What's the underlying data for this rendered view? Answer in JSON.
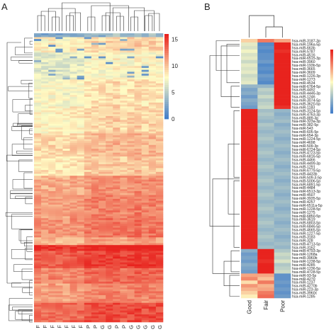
{
  "chart_data": [
    {
      "panel": "A",
      "type": "heatmap",
      "column_labels": [
        "F",
        "F",
        "F",
        "F",
        "F",
        "F",
        "F",
        "P",
        "P",
        "G",
        "G",
        "P",
        "P",
        "G",
        "G",
        "G",
        "G",
        "G"
      ],
      "n_rows": 150,
      "row_band_means": [
        {
          "rows": [
            0,
            2
          ],
          "value": 3.5
        },
        {
          "rows": [
            2,
            10
          ],
          "value": 9.0
        },
        {
          "rows": [
            10,
            24
          ],
          "value": 7.5
        },
        {
          "rows": [
            24,
            38
          ],
          "value": 8.5
        },
        {
          "rows": [
            38,
            52
          ],
          "value": 9.0
        },
        {
          "rows": [
            52,
            64
          ],
          "value": 10.0
        },
        {
          "rows": [
            64,
            74
          ],
          "value": 9.5
        },
        {
          "rows": [
            74,
            84
          ],
          "value": 11.5
        },
        {
          "rows": [
            84,
            96
          ],
          "value": 12.0
        },
        {
          "rows": [
            96,
            106
          ],
          "value": 12.5
        },
        {
          "rows": [
            106,
            110
          ],
          "value": 11.0
        },
        {
          "rows": [
            110,
            113
          ],
          "value": 16.0
        },
        {
          "rows": [
            113,
            122
          ],
          "value": 14.5
        },
        {
          "rows": [
            122,
            130
          ],
          "value": 13.0
        },
        {
          "rows": [
            130,
            140
          ],
          "value": 12.0
        },
        {
          "rows": [
            140,
            150
          ],
          "value": 14.0
        }
      ],
      "colorbar": {
        "ticks": [
          0,
          5,
          10,
          15
        ],
        "min": 0,
        "max": 16
      }
    },
    {
      "panel": "B",
      "type": "heatmap",
      "column_labels": [
        "Good",
        "Fair",
        "Poor"
      ],
      "row_labels": [
        "hsa-miR-3187-3p",
        "hsa-miR-196a-5p",
        "hsa-miR-663b",
        "hsa-miR-5787",
        "hsa-miR-4516",
        "hsa-miR-6515-3p",
        "hsa-miR-3960",
        "hsa-miR-193b-5p",
        "hsa-miR-3665",
        "hsa-miR-3609",
        "hsa-miR-1226-3p",
        "hsa-miR-1273",
        "hsa-miR-4534",
        "hsa-miR-6764-5p",
        "hsa-miR-4492",
        "hsa-miR-4446-3p",
        "hsa-miR-1246",
        "hsa-miR-3074-5p",
        "hsa-miR-3620-5p",
        "hsa-miR-1183",
        "hsa-miR-3124-5p",
        "hsa-miR-4763-3p",
        "hsa-miR-889-3p",
        "hsa-miR-323a-3p",
        "hsa-miR-382-5p",
        "hsa-miR-543",
        "hsa-miR-605-5p",
        "hsa-miR-654-3p",
        "hsa-miR-1224-5p",
        "hsa-miR-4698",
        "hsa-miR-509-3p",
        "hsa-miR-6724-5p",
        "hsa-miR-4723-5p",
        "hsa-miR-6816-5p",
        "hsa-miR-4466",
        "hsa-miR-4499-3p",
        "hsa-miR-1291",
        "hsa-miR-6779-5p",
        "hsa-miR-4433b",
        "hsa-miR-509-3-5p",
        "hsa-miR-5006-5p",
        "hsa-miR-6891-5p",
        "hsa-miR-4484",
        "hsa-miR-6513-3p",
        "hsa-miR-4507",
        "hsa-miR-3935-5p",
        "hsa-miR-4257",
        "hsa-miR-6511a-5p",
        "hsa-miR-1228-5p",
        "hsa-miR-1275",
        "hsa-miR-6850-5p",
        "hsa-miR-3619",
        "hsa-miR-6803-5p",
        "hsa-miR-6846-5p",
        "hsa-miR-4665-5p",
        "hsa-miR-1227-5p",
        "hsa-miR-3183",
        "hsa-miR-328",
        "hsa-miR-4713-5p",
        "hsa-miR-3162",
        "hsa-miR-4793-3p",
        "hsa-miR-1268a",
        "hsa-miR-3960b",
        "hsa-miR-1238-5p",
        "hsa-miR-4285",
        "hsa-miR-1236-5p",
        "hsa-miR-4728-5p",
        "hsa-miR-93-5p",
        "hsa-miR-4270",
        "hsa-miR-1237",
        "hsa-miR-4270b",
        "hsa-miR-223-3p",
        "hsa-miR-3960c",
        "hsa-miR-1285"
      ],
      "values": [
        [
          0.3,
          0.9,
          0.6
        ],
        [
          -0.2,
          -1.3,
          1.5
        ],
        [
          -0.3,
          -1.2,
          1.5
        ],
        [
          -0.1,
          -1.3,
          1.4
        ],
        [
          -0.3,
          -1.2,
          1.5
        ],
        [
          -0.2,
          -1.2,
          1.5
        ],
        [
          -0.4,
          -1.1,
          1.5
        ],
        [
          -0.2,
          -1.3,
          1.5
        ],
        [
          -0.3,
          -1.2,
          1.5
        ],
        [
          -0.2,
          -1.3,
          1.5
        ],
        [
          -0.4,
          -1.1,
          1.5
        ],
        [
          -0.3,
          -1.2,
          1.5
        ],
        [
          -0.2,
          -1.3,
          1.5
        ],
        [
          -0.8,
          -0.8,
          1.5
        ],
        [
          -1.0,
          -0.5,
          1.5
        ],
        [
          -0.9,
          -0.6,
          1.5
        ],
        [
          -1.1,
          -0.4,
          1.5
        ],
        [
          -0.9,
          -0.6,
          1.5
        ],
        [
          -1.0,
          -0.5,
          1.5
        ],
        [
          -1.1,
          -0.4,
          1.4
        ],
        [
          1.5,
          -0.7,
          -0.8
        ],
        [
          1.5,
          -0.6,
          -0.9
        ],
        [
          1.5,
          -0.7,
          -0.8
        ],
        [
          1.5,
          -0.8,
          -0.7
        ],
        [
          1.5,
          -0.6,
          -0.9
        ],
        [
          1.5,
          -0.7,
          -0.8
        ],
        [
          1.5,
          -0.8,
          -0.7
        ],
        [
          1.5,
          -0.7,
          -0.8
        ],
        [
          1.5,
          -0.6,
          -0.9
        ],
        [
          1.5,
          -0.7,
          -0.8
        ],
        [
          1.5,
          -0.8,
          -0.7
        ],
        [
          1.5,
          -0.7,
          -0.8
        ],
        [
          1.5,
          -0.6,
          -0.9
        ],
        [
          1.5,
          -0.7,
          -0.8
        ],
        [
          1.5,
          -0.8,
          -0.7
        ],
        [
          1.5,
          -0.7,
          -0.8
        ],
        [
          1.5,
          -0.6,
          -0.9
        ],
        [
          1.5,
          -0.7,
          -0.8
        ],
        [
          1.5,
          -0.8,
          -0.7
        ],
        [
          1.5,
          -0.7,
          -0.8
        ],
        [
          1.5,
          -0.6,
          -0.9
        ],
        [
          1.5,
          -0.7,
          -0.8
        ],
        [
          1.5,
          -0.8,
          -0.7
        ],
        [
          1.5,
          -0.7,
          -0.8
        ],
        [
          1.5,
          -0.6,
          -0.9
        ],
        [
          1.5,
          -0.7,
          -0.8
        ],
        [
          1.5,
          -0.8,
          -0.7
        ],
        [
          1.5,
          -0.7,
          -0.8
        ],
        [
          1.5,
          -0.6,
          -0.9
        ],
        [
          1.5,
          -0.7,
          -0.8
        ],
        [
          1.5,
          -0.8,
          -0.7
        ],
        [
          1.5,
          -0.7,
          -0.8
        ],
        [
          1.5,
          -0.6,
          -0.9
        ],
        [
          1.5,
          -0.7,
          -0.8
        ],
        [
          1.5,
          -0.8,
          -0.7
        ],
        [
          1.5,
          -0.7,
          -0.8
        ],
        [
          1.5,
          -0.6,
          -0.9
        ],
        [
          1.5,
          -0.7,
          -0.8
        ],
        [
          1.5,
          -0.8,
          -0.7
        ],
        [
          1.5,
          -0.7,
          -0.8
        ],
        [
          -0.9,
          1.5,
          -0.6
        ],
        [
          -1.1,
          1.5,
          -0.4
        ],
        [
          -1.0,
          1.5,
          -0.5
        ],
        [
          -1.1,
          1.4,
          -0.3
        ],
        [
          -0.9,
          1.5,
          -0.6
        ],
        [
          -1.0,
          1.5,
          -0.5
        ],
        [
          -1.1,
          1.5,
          -0.4
        ],
        [
          0.6,
          0.6,
          -1.2
        ],
        [
          0.8,
          0.4,
          -1.2
        ],
        [
          0.2,
          0.9,
          -1.1
        ],
        [
          0.7,
          0.5,
          -1.2
        ],
        [
          0.5,
          0.6,
          -1.1
        ],
        [
          0.3,
          0.9,
          -1.2
        ],
        [
          0.1,
          1.0,
          -1.1
        ]
      ],
      "colorbar": {
        "min": -1.5,
        "max": 1.5
      }
    }
  ],
  "panels": {
    "a_letter": "A",
    "b_letter": "B"
  },
  "colors": {
    "low": "#3a78c9",
    "mid": "#fffcc4",
    "high": "#e8231e",
    "strong_high": "#d7191c"
  }
}
